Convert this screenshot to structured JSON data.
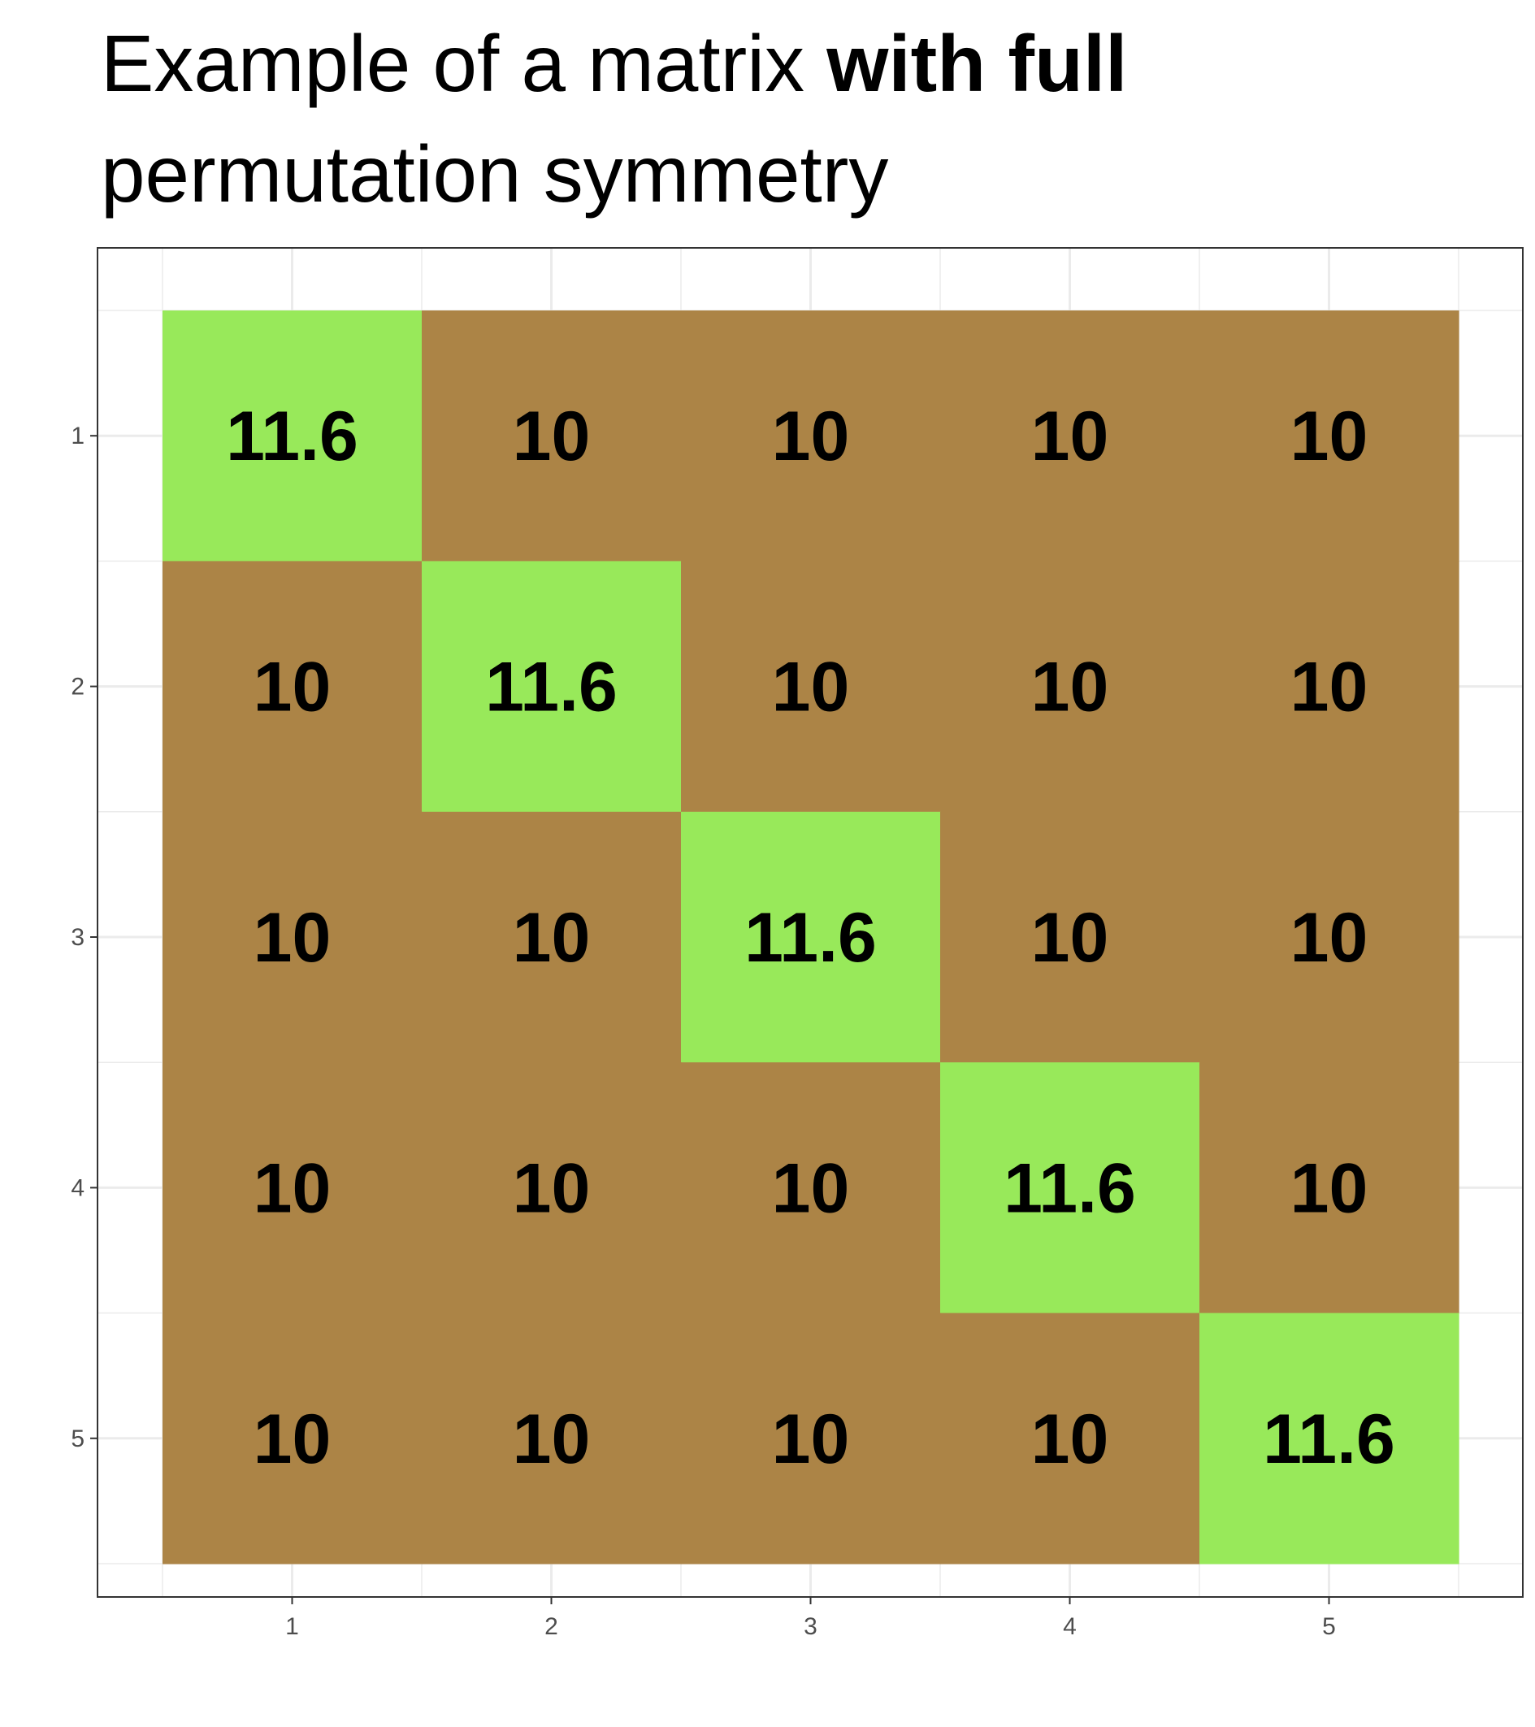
{
  "chart_data": {
    "type": "heatmap",
    "title_parts": [
      {
        "text": "Example of a matrix ",
        "bold": false
      },
      {
        "text": "with full",
        "bold": true
      },
      {
        "text": "permutation symmetry",
        "bold": false
      }
    ],
    "xlabel": "",
    "ylabel": "",
    "x_categories": [
      "1",
      "2",
      "3",
      "4",
      "5"
    ],
    "y_categories": [
      "1",
      "2",
      "3",
      "4",
      "5"
    ],
    "values": [
      [
        11.6,
        10,
        10,
        10,
        10
      ],
      [
        10,
        11.6,
        10,
        10,
        10
      ],
      [
        10,
        10,
        11.6,
        10,
        10
      ],
      [
        10,
        10,
        10,
        11.6,
        10
      ],
      [
        10,
        10,
        10,
        10,
        11.6
      ]
    ],
    "colors": {
      "diagonal": "#98E95A",
      "off_diagonal": "#AC8446",
      "cell_text": "#000000",
      "grid": "#EBEBEB",
      "panel_border": "#333333",
      "tick_label": "#4D4D4D"
    },
    "grid": true,
    "legend": "none"
  }
}
